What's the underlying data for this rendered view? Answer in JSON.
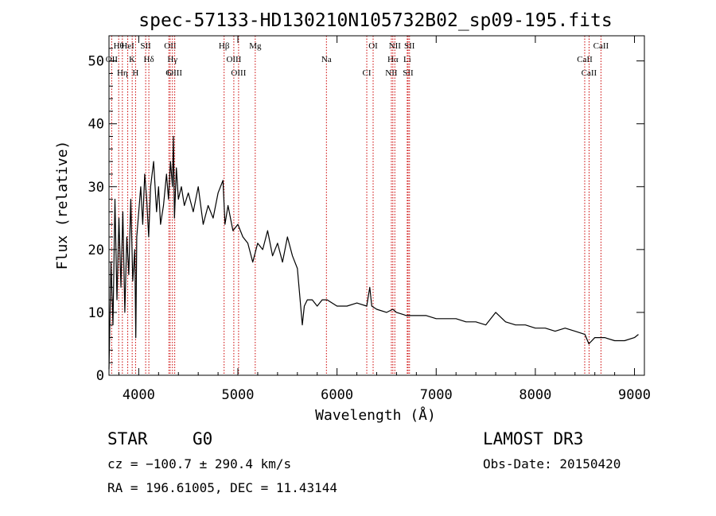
{
  "chart_data": {
    "type": "line",
    "title": "spec-57133-HD130210N105732B02_sp09-195.fits",
    "xlabel": "Wavelength (Å)",
    "ylabel": "Flux (relative)",
    "xlim": [
      3700,
      9100
    ],
    "ylim": [
      0,
      54
    ],
    "xticks": [
      4000,
      5000,
      6000,
      7000,
      8000,
      9000
    ],
    "yticks": [
      0,
      10,
      20,
      30,
      40,
      50
    ],
    "ytick_labels": [
      "0",
      "10",
      "20",
      "30",
      "40",
      "50"
    ],
    "grid": false,
    "series": [
      {
        "name": "flux",
        "x": [
          3700,
          3720,
          3740,
          3760,
          3780,
          3800,
          3820,
          3840,
          3860,
          3880,
          3900,
          3920,
          3940,
          3960,
          3970,
          3980,
          4000,
          4020,
          4040,
          4060,
          4080,
          4100,
          4120,
          4150,
          4180,
          4200,
          4220,
          4250,
          4280,
          4300,
          4320,
          4340,
          4350,
          4360,
          4380,
          4400,
          4430,
          4460,
          4500,
          4550,
          4600,
          4650,
          4700,
          4750,
          4800,
          4850,
          4870,
          4900,
          4950,
          5000,
          5050,
          5100,
          5150,
          5200,
          5250,
          5300,
          5350,
          5400,
          5450,
          5500,
          5550,
          5600,
          5650,
          5670,
          5700,
          5750,
          5800,
          5850,
          5900,
          6000,
          6100,
          6200,
          6300,
          6330,
          6350,
          6400,
          6500,
          6563,
          6600,
          6700,
          6800,
          6900,
          7000,
          7100,
          7200,
          7300,
          7400,
          7500,
          7600,
          7700,
          7800,
          7900,
          8000,
          8100,
          8200,
          8300,
          8400,
          8500,
          8540,
          8600,
          8700,
          8800,
          8900,
          9000,
          9040
        ],
        "y": [
          1,
          18,
          8,
          28,
          12,
          25,
          14,
          26,
          10,
          22,
          16,
          28,
          15,
          20,
          6,
          22,
          26,
          30,
          24,
          32,
          28,
          22,
          30,
          34,
          26,
          30,
          24,
          27,
          32,
          28,
          34,
          30,
          38,
          25,
          33,
          28,
          30,
          27,
          29,
          26,
          30,
          24,
          27,
          25,
          29,
          31,
          24,
          27,
          23,
          24,
          22,
          21,
          18,
          21,
          20,
          23,
          19,
          21,
          18,
          22,
          19,
          17,
          8,
          11,
          12,
          12,
          11,
          12,
          12,
          11,
          11,
          11.5,
          11,
          14,
          11,
          10.5,
          10,
          10.5,
          10,
          9.5,
          9.5,
          9.5,
          9,
          9,
          9,
          8.5,
          8.5,
          8,
          10,
          8.5,
          8,
          8,
          7.5,
          7.5,
          7,
          7.5,
          7,
          6.5,
          5,
          6,
          6,
          5.5,
          5.5,
          6,
          6.5
        ]
      }
    ],
    "lines": [
      {
        "label": "Hθ",
        "x": 3798
      },
      {
        "label": "OII",
        "x": 3727
      },
      {
        "label": "Hη",
        "x": 3835
      },
      {
        "label": "HeI",
        "x": 3889
      },
      {
        "label": "K",
        "x": 3934
      },
      {
        "label": "H",
        "x": 3968
      },
      {
        "label": "SII",
        "x": 4070
      },
      {
        "label": "Hδ",
        "x": 4102
      },
      {
        "label": "G",
        "x": 4304
      },
      {
        "label": "OII",
        "x": 4317
      },
      {
        "label": "Hγ",
        "x": 4340
      },
      {
        "label": "OIII",
        "x": 4363
      },
      {
        "label": "Hβ",
        "x": 4861
      },
      {
        "label": "OIII",
        "x": 4959
      },
      {
        "label": "OIII",
        "x": 5007
      },
      {
        "label": "Mg",
        "x": 5175
      },
      {
        "label": "Na",
        "x": 5893
      },
      {
        "label": "CI",
        "x": 6300
      },
      {
        "label": "OI",
        "x": 6364
      },
      {
        "label": "Hα",
        "x": 6563
      },
      {
        "label": "NII",
        "x": 6548
      },
      {
        "label": "NII",
        "x": 6583
      },
      {
        "label": "Li",
        "x": 6708
      },
      {
        "label": "SII",
        "x": 6717
      },
      {
        "label": "SII",
        "x": 6731
      },
      {
        "label": "CaII",
        "x": 8498
      },
      {
        "label": "CaII",
        "x": 8542
      },
      {
        "label": "CaII",
        "x": 8662
      }
    ]
  },
  "info": {
    "object_class": "STAR",
    "subclass": "G0",
    "survey": "LAMOST DR3",
    "redshift": "cz = −100.7 ± 290.4 km/s",
    "obs_date": "Obs-Date: 20150420",
    "coords": "RA = 196.61005, DEC =  11.43144"
  },
  "colors": {
    "spectrum": "#000000",
    "line_marker": "#cc0000"
  }
}
